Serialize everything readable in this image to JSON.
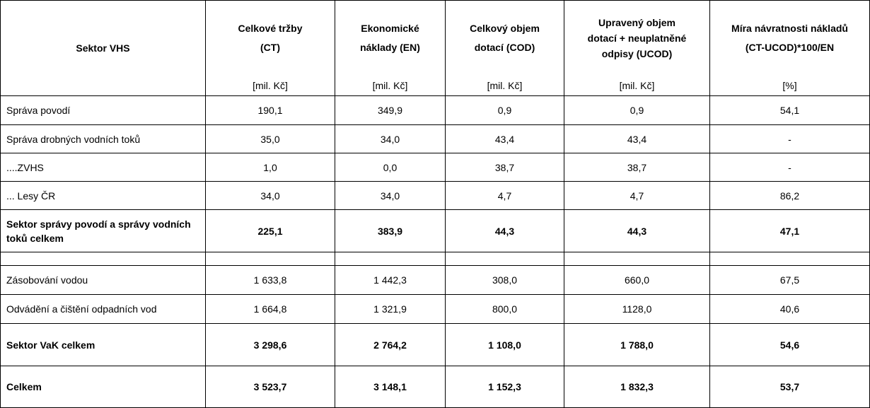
{
  "headers": {
    "sector": "Sektor VHS",
    "ct": [
      "Celkové tržby",
      "(CT)"
    ],
    "en": [
      "Ekonomické",
      "náklady (EN)"
    ],
    "cod": [
      "Celkový objem",
      "dotací (COD)"
    ],
    "ucod": [
      "Upravený objem",
      "dotací + neuplatněné",
      "odpisy (UCOD)"
    ],
    "ratio": [
      "Míra návratnosti nákladů",
      "(CT-UCOD)*100/EN"
    ]
  },
  "units": {
    "ct": "[mil. Kč]",
    "en": "[mil. Kč]",
    "cod": "[mil. Kč]",
    "ucod": "[mil. Kč]",
    "ratio": "[%]"
  },
  "rows": [
    {
      "label": "Správa povodí",
      "ct": "190,1",
      "en": "349,9",
      "cod": "0,9",
      "ucod": "0,9",
      "ratio": "54,1"
    },
    {
      "label": "Správa drobných vodních toků",
      "ct": "35,0",
      "en": "34,0",
      "cod": "43,4",
      "ucod": "43,4",
      "ratio": "-"
    },
    {
      "label": "....ZVHS",
      "ct": "1,0",
      "en": "0,0",
      "cod": "38,7",
      "ucod": "38,7",
      "ratio": "-"
    },
    {
      "label": "... Lesy ČR",
      "ct": "34,0",
      "en": "34,0",
      "cod": "4,7",
      "ucod": "4,7",
      "ratio": "86,2"
    },
    {
      "label": "Sektor správy povodí a správy vodních toků celkem",
      "ct": "225,1",
      "en": "383,9",
      "cod": "44,3",
      "ucod": "44,3",
      "ratio": "47,1"
    },
    {
      "label": "",
      "ct": "",
      "en": "",
      "cod": "",
      "ucod": "",
      "ratio": ""
    },
    {
      "label": "Zásobování vodou",
      "ct": "1 633,8",
      "en": "1 442,3",
      "cod": "308,0",
      "ucod": "660,0",
      "ratio": "67,5"
    },
    {
      "label": "Odvádění a čištění odpadních vod",
      "ct": "1 664,8",
      "en": "1 321,9",
      "cod": "800,0",
      "ucod": "1128,0",
      "ratio": "40,6"
    },
    {
      "label": "Sektor VaK celkem",
      "ct": "3 298,6",
      "en": "2 764,2",
      "cod": "1 108,0",
      "ucod": "1 788,0",
      "ratio": "54,6"
    },
    {
      "label": "Celkem",
      "ct": "3 523,7",
      "en": "3 148,1",
      "cod": "1 152,3",
      "ucod": "1 832,3",
      "ratio": "53,7"
    }
  ]
}
